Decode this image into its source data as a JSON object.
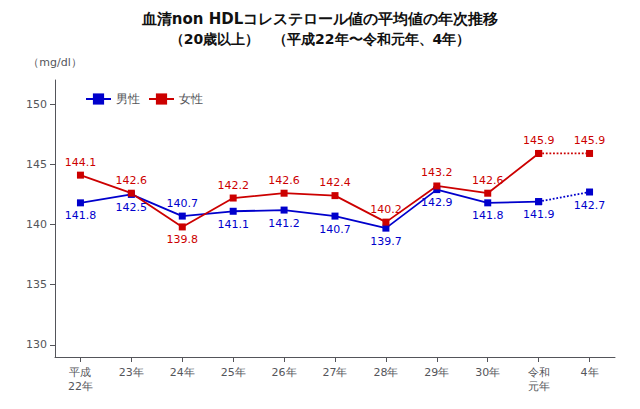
{
  "chart_data": {
    "type": "line",
    "title": "血清non HDLコレステロール値の平均値の年次推移",
    "subtitle": "（20歳以上）　（平成22年〜令和元年、4年）",
    "ylabel": "（mg/dl）",
    "categories": [
      "平成\n22年",
      "23年",
      "24年",
      "25年",
      "26年",
      "27年",
      "28年",
      "29年",
      "30年",
      "令和\n元年",
      "4年"
    ],
    "series": [
      {
        "name": "男性",
        "color": "#0000cc",
        "line_style": "solid",
        "values": [
          141.8,
          142.5,
          140.7,
          141.1,
          141.2,
          140.7,
          139.7,
          142.9,
          141.8,
          141.9,
          null
        ]
      },
      {
        "name": "女性",
        "color": "#cc0000",
        "line_style": "solid",
        "values": [
          144.1,
          142.6,
          139.8,
          142.2,
          142.6,
          142.4,
          140.2,
          143.2,
          142.6,
          145.9,
          null
        ]
      },
      {
        "name": "男性",
        "color": "#0000cc",
        "line_style": "dotted",
        "values": [
          null,
          null,
          null,
          null,
          null,
          null,
          null,
          null,
          null,
          141.9,
          142.7
        ]
      },
      {
        "name": "女性",
        "color": "#cc0000",
        "line_style": "dotted",
        "values": [
          null,
          null,
          null,
          null,
          null,
          null,
          null,
          null,
          null,
          145.9,
          145.9
        ]
      }
    ],
    "ylim": [
      129,
      152
    ],
    "yticks": [
      130,
      135,
      140,
      145,
      150
    ],
    "grid": false,
    "legend": "upper left",
    "data_labels": true,
    "marker": "square"
  }
}
